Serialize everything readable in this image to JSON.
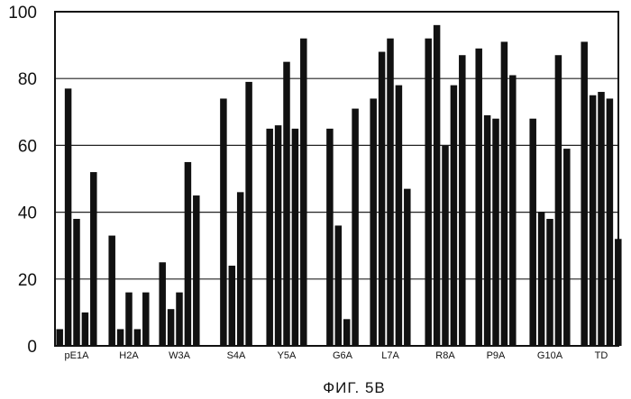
{
  "caption": "ФИГ. 5В",
  "chart_data": {
    "type": "bar",
    "title": "",
    "xlabel": "",
    "ylabel": "",
    "ylim": [
      0,
      100
    ],
    "yticks": [
      0,
      20,
      40,
      60,
      80,
      100
    ],
    "grid": "horizontal",
    "bar_color": "#111111",
    "categories": [
      "pE1A",
      "H2A",
      "W3A",
      "S4A",
      "Y5A",
      "G6A",
      "L7A",
      "R8A",
      "P9A",
      "G10A",
      "TD"
    ],
    "values": [
      [
        5,
        77,
        38,
        10,
        52
      ],
      [
        33,
        5,
        16,
        5,
        16
      ],
      [
        25,
        11,
        16,
        55,
        45
      ],
      [
        74,
        24,
        46,
        79
      ],
      [
        65,
        66,
        85,
        65,
        92
      ],
      [
        65,
        36,
        8,
        71
      ],
      [
        74,
        88,
        92,
        78,
        47
      ],
      [
        92,
        96,
        60,
        78,
        87
      ],
      [
        89,
        69,
        68,
        91,
        81
      ],
      [
        68,
        40,
        38,
        87,
        59
      ],
      [
        91,
        75,
        76,
        74,
        32
      ]
    ]
  }
}
